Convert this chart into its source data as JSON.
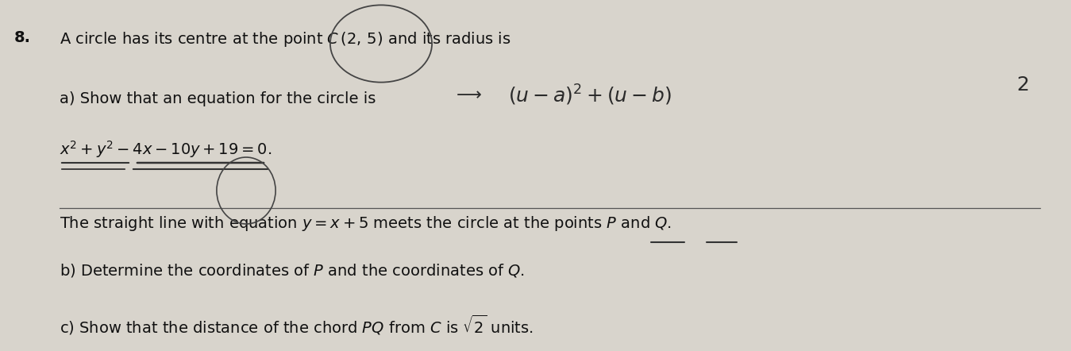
{
  "background_color": "#d8d4cc",
  "fig_width": 13.49,
  "fig_height": 4.42,
  "dpi": 100,
  "question_number": "8.",
  "line1_prefix": "A circle has its centre at the point ",
  "line1_c": "C (2, 5)",
  "line1_suffix": " and its radius is",
  "part_a_label": "a) Show that an equation for the circle is",
  "part_a_equation": "$x^2+y^2-4x-10y+19=0.$",
  "line_sep": "The straight line with equation $y = x + 5$ meets the circle at the points $P$ and $Q$.",
  "part_b": "b) Determine the coordinates of $P$ and the coordinates of $Q$.",
  "part_c": "c) Show that the distance of the chord $PQ$ from $C$ is $\\sqrt{2}$ units.",
  "font_size_main": 14,
  "text_color": "#111111",
  "handwritten_color": "#2a2a2a",
  "underline_color": "#333333",
  "ellipse_color": "#444444"
}
